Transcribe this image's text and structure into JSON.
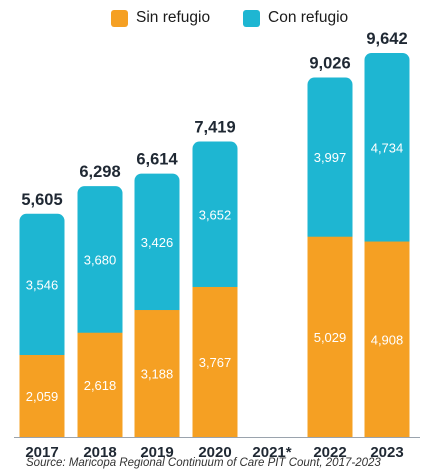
{
  "colors": {
    "sin_refugio": "#F5A023",
    "con_refugio": "#1EB6D2",
    "total_text": "#1f2833",
    "axis_text": "#1f2833",
    "baseline": "#9aa3ad"
  },
  "legend": {
    "items": [
      {
        "label": "Sin refugio",
        "color": "#F5A023"
      },
      {
        "label": "Con refugio",
        "color": "#1EB6D2"
      }
    ]
  },
  "source_note": "Source: Maricopa Regional Continuum of Care PIT Count, 2017-2023",
  "chart_data": {
    "type": "bar",
    "stacked": true,
    "categories": [
      "2017",
      "2018",
      "2019",
      "2020",
      "2021*",
      "2022",
      "2023"
    ],
    "series": [
      {
        "name": "Sin refugio",
        "values": [
          2059,
          2618,
          3188,
          3767,
          null,
          5029,
          4908
        ]
      },
      {
        "name": "Con refugio",
        "values": [
          3546,
          3680,
          3426,
          3652,
          null,
          3997,
          4734
        ]
      }
    ],
    "value_labels": {
      "sin_refugio": [
        "2,059",
        "2,618",
        "3,188",
        "3,767",
        "",
        "5,029",
        "4,908"
      ],
      "con_refugio": [
        "3,546",
        "3,680",
        "3,426",
        "3,652",
        "",
        "3,997",
        "4,734"
      ],
      "totals": [
        "5,605",
        "6,298",
        "6,614",
        "7,419",
        "",
        "9,026",
        "9,642"
      ]
    },
    "ylim": [
      0,
      9642
    ],
    "grid": false,
    "legend_position": "top"
  }
}
